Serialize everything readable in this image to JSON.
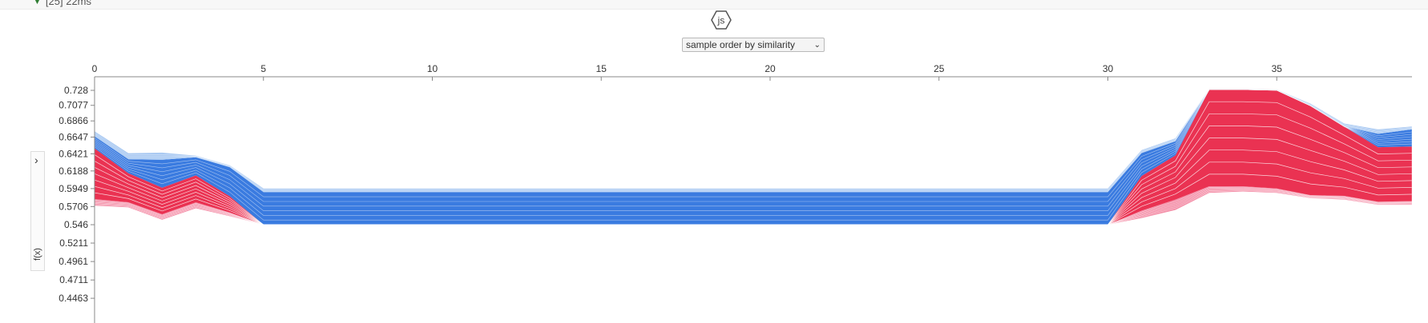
{
  "topbar": {
    "label": "[25] 22ms"
  },
  "badge": {
    "label": "js"
  },
  "controls": {
    "order_select": "sample order by similarity"
  },
  "side_panel": {
    "ylabel": "f(x)"
  },
  "colors": {
    "positive": "#ea3252",
    "positive_light": "#f48fa8",
    "negative": "#3a7be0",
    "negative_light": "#a9c9f2"
  },
  "chart_data": {
    "type": "area",
    "title": "",
    "xlabel": "",
    "ylabel": "f(x)",
    "x_ticks": [
      0,
      5,
      10,
      15,
      20,
      25,
      30,
      35
    ],
    "y_ticks": [
      0.728,
      0.7077,
      0.6866,
      0.6647,
      0.6421,
      0.6188,
      0.5949,
      0.5706,
      0.546,
      0.5211,
      0.4961,
      0.4711,
      0.4463
    ],
    "xlim": [
      0,
      39
    ],
    "ylim": [
      0.4463,
      0.7325
    ],
    "grid": false,
    "samples_x": [
      0,
      1,
      2,
      3,
      4,
      5,
      10,
      15,
      20,
      25,
      30,
      31,
      32,
      33,
      34,
      35,
      36,
      37,
      38,
      39
    ],
    "series": [
      {
        "name": "",
        "sign": "positive_tail",
        "values": [
          0.5718,
          0.5694,
          0.5526,
          0.5683,
          0.5575,
          0.546,
          0.546,
          0.546,
          0.546,
          0.546,
          0.546,
          0.555,
          0.566,
          0.589,
          0.591,
          0.589,
          0.582,
          0.58,
          0.573,
          0.573
        ]
      },
      {
        "name": "",
        "sign": "positive_low",
        "values": [
          0.5806,
          0.5764,
          0.5601,
          0.5763,
          0.5625,
          0.546,
          0.546,
          0.546,
          0.546,
          0.546,
          0.546,
          0.565,
          0.58,
          0.598,
          0.598,
          0.595,
          0.586,
          0.585,
          0.577,
          0.578
        ]
      },
      {
        "name": "",
        "sign": "positive",
        "values": [
          0.6495,
          0.6158,
          0.5961,
          0.6128,
          0.5846,
          0.546,
          0.546,
          0.546,
          0.546,
          0.546,
          0.546,
          0.612,
          0.64,
          0.729,
          0.729,
          0.728,
          0.707,
          0.679,
          0.651,
          0.652
        ]
      },
      {
        "name": "",
        "sign": "negative",
        "values": [
          0.6656,
          0.6346,
          0.6339,
          0.6374,
          0.6239,
          0.5901,
          0.5901,
          0.5901,
          0.5901,
          0.5901,
          0.5901,
          0.643,
          0.659,
          0.729,
          0.729,
          0.728,
          0.707,
          0.679,
          0.669,
          0.675
        ]
      },
      {
        "name": "",
        "sign": "negative_light",
        "values": [
          0.6726,
          0.6429,
          0.6436,
          0.6394,
          0.6265,
          0.5951,
          0.5951,
          0.5951,
          0.5951,
          0.5951,
          0.5951,
          0.647,
          0.663,
          0.73,
          0.73,
          0.729,
          0.71,
          0.683,
          0.675,
          0.679
        ]
      }
    ]
  }
}
